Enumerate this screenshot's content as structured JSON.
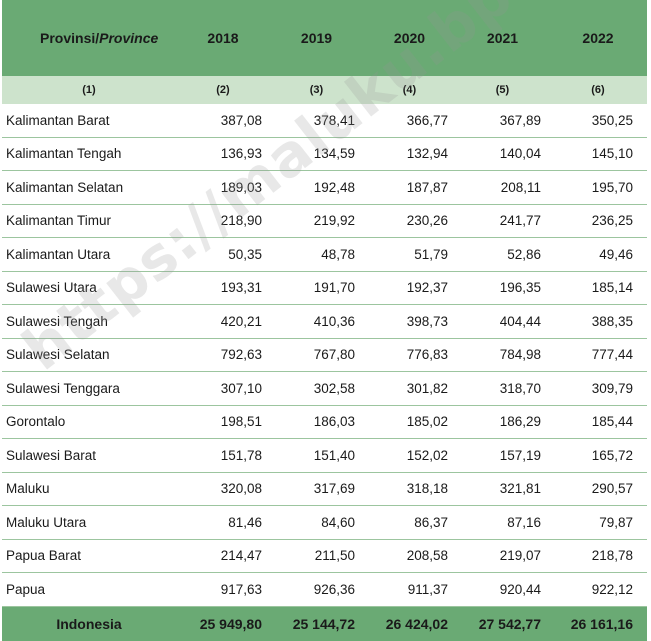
{
  "header": {
    "province_label": "Provinsi/",
    "province_label_en": "Province",
    "years": [
      "2018",
      "2019",
      "2020",
      "2021",
      "2022"
    ],
    "col_numbers": [
      "(1)",
      "(2)",
      "(3)",
      "(4)",
      "(5)",
      "(6)"
    ]
  },
  "rows": [
    {
      "name": "Kalimantan Barat",
      "values": [
        "387,08",
        "378,41",
        "366,77",
        "367,89",
        "350,25"
      ]
    },
    {
      "name": "Kalimantan Tengah",
      "values": [
        "136,93",
        "134,59",
        "132,94",
        "140,04",
        "145,10"
      ]
    },
    {
      "name": "Kalimantan Selatan",
      "values": [
        "189,03",
        "192,48",
        "187,87",
        "208,11",
        "195,70"
      ]
    },
    {
      "name": "Kalimantan Timur",
      "values": [
        "218,90",
        "219,92",
        "230,26",
        "241,77",
        "236,25"
      ]
    },
    {
      "name": "Kalimantan Utara",
      "values": [
        "50,35",
        "48,78",
        "51,79",
        "52,86",
        "49,46"
      ]
    },
    {
      "name": "Sulawesi Utara",
      "values": [
        "193,31",
        "191,70",
        "192,37",
        "196,35",
        "185,14"
      ]
    },
    {
      "name": "Sulawesi Tengah",
      "values": [
        "420,21",
        "410,36",
        "398,73",
        "404,44",
        "388,35"
      ]
    },
    {
      "name": "Sulawesi Selatan",
      "values": [
        "792,63",
        "767,80",
        "776,83",
        "784,98",
        "777,44"
      ]
    },
    {
      "name": "Sulawesi Tenggara",
      "values": [
        "307,10",
        "302,58",
        "301,82",
        "318,70",
        "309,79"
      ]
    },
    {
      "name": "Gorontalo",
      "values": [
        "198,51",
        "186,03",
        "185,02",
        "186,29",
        "185,44"
      ]
    },
    {
      "name": "Sulawesi Barat",
      "values": [
        "151,78",
        "151,40",
        "152,02",
        "157,19",
        "165,72"
      ]
    },
    {
      "name": "Maluku",
      "values": [
        "320,08",
        "317,69",
        "318,18",
        "321,81",
        "290,57"
      ]
    },
    {
      "name": "Maluku Utara",
      "values": [
        "81,46",
        "84,60",
        "86,37",
        "87,16",
        "79,87"
      ]
    },
    {
      "name": "Papua Barat",
      "values": [
        "214,47",
        "211,50",
        "208,58",
        "219,07",
        "218,78"
      ]
    },
    {
      "name": "Papua",
      "values": [
        "917,63",
        "926,36",
        "911,37",
        "920,44",
        "922,12"
      ]
    }
  ],
  "total": {
    "name": "Indonesia",
    "values": [
      "25 949,80",
      "25 144,72",
      "26 424,02",
      "27 542,77",
      "26 161,16"
    ]
  },
  "watermark": "https://maluku.bps.go.id",
  "colors": {
    "header_bg": "#6aaa74",
    "subheader_bg": "#cde3cc",
    "row_border": "#9cc59f"
  }
}
